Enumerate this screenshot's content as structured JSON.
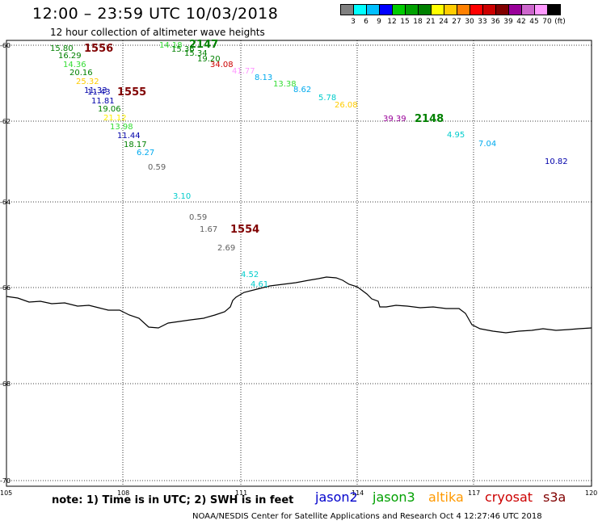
{
  "header": {
    "title": "12:00 – 23:59 UTC 10/03/2018",
    "subtitle": "12 hour collection of altimeter wave heights"
  },
  "scale": {
    "colors": [
      "#808080",
      "#00ffff",
      "#00bfff",
      "#0000ff",
      "#00cc00",
      "#00a000",
      "#008000",
      "#ffff00",
      "#ffcc00",
      "#ff8000",
      "#ff0000",
      "#cc0000",
      "#800000",
      "#990099",
      "#cc66cc",
      "#ff99ff",
      "#000000"
    ],
    "labels": [
      "3",
      "6",
      "9",
      "12",
      "15",
      "18",
      "21",
      "24",
      "27",
      "30",
      "33",
      "36",
      "39",
      "42",
      "45",
      "70",
      "(ft)"
    ]
  },
  "axes": {
    "lat_labels": [
      "-60",
      "-62",
      "-64",
      "-66",
      "-68",
      "-70"
    ],
    "lon_labels": [
      "105",
      "108",
      "111",
      "114",
      "117",
      "120"
    ]
  },
  "tracks": [
    {
      "label": "1556",
      "color": "#800000"
    },
    {
      "label": "1555",
      "color": "#800000"
    },
    {
      "label": "1554",
      "color": "#800000"
    },
    {
      "label": "2147",
      "color": "#008000"
    },
    {
      "label": "2148",
      "color": "#008000"
    }
  ],
  "observations": [
    {
      "v": "15.80",
      "color": "#008000"
    },
    {
      "v": "16.29",
      "color": "#008000"
    },
    {
      "v": "14.36",
      "color": "#33dd33"
    },
    {
      "v": "20.16",
      "color": "#008000"
    },
    {
      "v": "25.32",
      "color": "#ffcc00"
    },
    {
      "v": "11.33",
      "color": "#0000aa"
    },
    {
      "v": "11.43",
      "color": "#0000aa"
    },
    {
      "v": "11.81",
      "color": "#0000aa"
    },
    {
      "v": "19.06",
      "color": "#008000"
    },
    {
      "v": "21.12",
      "color": "#ffee00"
    },
    {
      "v": "13.98",
      "color": "#33dd33"
    },
    {
      "v": "11.44",
      "color": "#0000aa"
    },
    {
      "v": "18.17",
      "color": "#008000"
    },
    {
      "v": "6.27",
      "color": "#00aaee"
    },
    {
      "v": "0.59",
      "color": "#606060"
    },
    {
      "v": "3.10",
      "color": "#00cccc"
    },
    {
      "v": "0.59",
      "color": "#606060"
    },
    {
      "v": "1.67",
      "color": "#606060"
    },
    {
      "v": "2.69",
      "color": "#606060"
    },
    {
      "v": "4.52",
      "color": "#00cccc"
    },
    {
      "v": "4.61",
      "color": "#00cccc"
    },
    {
      "v": "14.18",
      "color": "#33dd33"
    },
    {
      "v": "15.36",
      "color": "#008000"
    },
    {
      "v": "15.34",
      "color": "#008000"
    },
    {
      "v": "19.20",
      "color": "#008000"
    },
    {
      "v": "34.08",
      "color": "#cc0000"
    },
    {
      "v": "41.77",
      "color": "#ff99ff"
    },
    {
      "v": "8.13",
      "color": "#00aaee"
    },
    {
      "v": "13.38",
      "color": "#33dd33"
    },
    {
      "v": "8.62",
      "color": "#00aaee"
    },
    {
      "v": "5.78",
      "color": "#00cccc"
    },
    {
      "v": "26.08",
      "color": "#ffcc00"
    },
    {
      "v": "39.39",
      "color": "#990099"
    },
    {
      "v": "4.95",
      "color": "#00cccc"
    },
    {
      "v": "7.04",
      "color": "#00aaee"
    },
    {
      "v": "10.82",
      "color": "#0000aa"
    }
  ],
  "footer": {
    "note": "note: 1) Time is in UTC; 2) SWH is in feet",
    "satellites": [
      {
        "name": "jason2",
        "color": "#0000cc"
      },
      {
        "name": "jason3",
        "color": "#00a000"
      },
      {
        "name": "altika",
        "color": "#ff9900"
      },
      {
        "name": "cryosat",
        "color": "#cc0000"
      },
      {
        "name": "s3a",
        "color": "#800000"
      }
    ],
    "credit": "NOAA/NESDIS Center for Satellite Applications and Research   Oct  4 12:27:46 UTC 2018"
  }
}
